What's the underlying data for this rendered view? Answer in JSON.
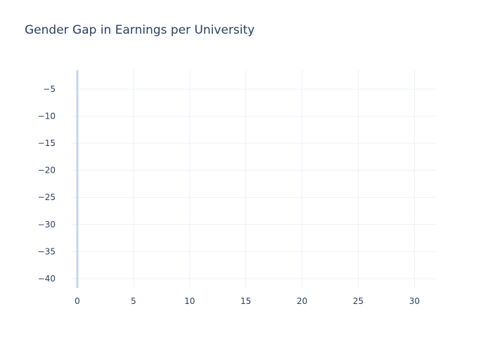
{
  "chart_data": {
    "type": "bar",
    "title": "Gender Gap in Earnings per University",
    "xlabel": "",
    "ylabel": "",
    "xlim": [
      -0.5,
      31.9
    ],
    "ylim": [
      -41.7,
      -1.5
    ],
    "xticks": [
      0,
      5,
      10,
      15,
      20,
      25,
      30
    ],
    "yticks": [
      -5,
      -10,
      -15,
      -20,
      -25,
      -30,
      -35,
      -40
    ],
    "xtick_labels": [
      "0",
      "5",
      "10",
      "15",
      "20",
      "25",
      "30"
    ],
    "ytick_labels": [
      "−5",
      "−10",
      "−15",
      "−20",
      "−25",
      "−30",
      "−35",
      "−40"
    ],
    "grid": true,
    "series": [
      {
        "x": [
          0
        ],
        "values": [
          -41.7
        ],
        "color": "#c8d4ec"
      }
    ],
    "colors": {
      "grid": "#ebf0f8",
      "text": "#2a3f5f",
      "background": "#ffffff"
    }
  }
}
